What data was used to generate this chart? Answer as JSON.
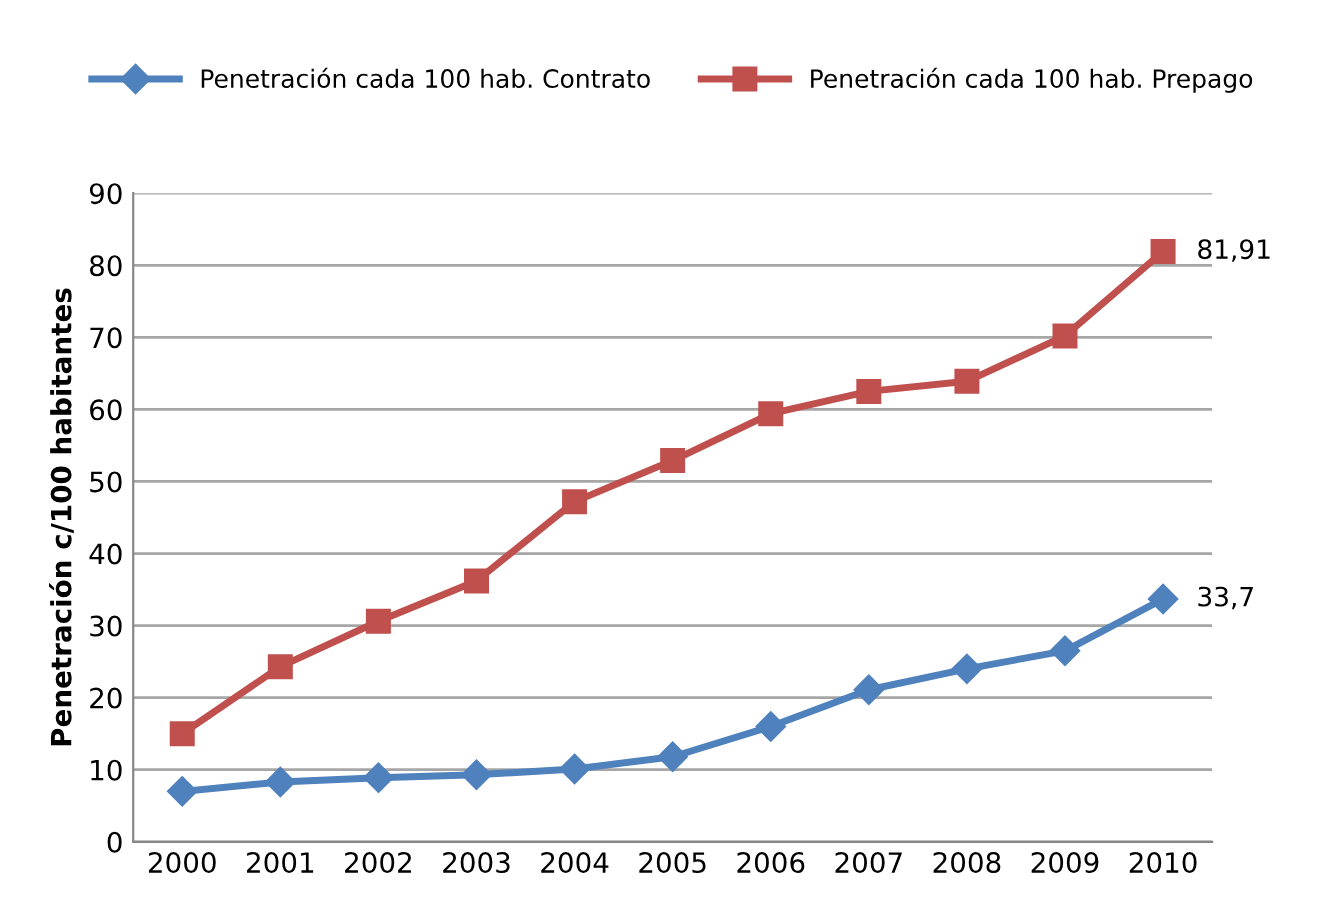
{
  "chart_data": {
    "type": "line",
    "ylabel": "Penetración c/100 habitantes",
    "categories": [
      "2000",
      "2001",
      "2002",
      "2003",
      "2004",
      "2005",
      "2006",
      "2007",
      "2008",
      "2009",
      "2010"
    ],
    "series": [
      {
        "name": "Penetración cada 100 hab. Contrato",
        "color": "#4f81bd",
        "marker": "diamond",
        "values": [
          7.0,
          8.3,
          8.9,
          9.3,
          10.1,
          11.8,
          16.0,
          21.1,
          24.0,
          26.5,
          33.7
        ],
        "value_labels": [
          null,
          null,
          null,
          null,
          null,
          null,
          null,
          null,
          null,
          null,
          "33,7"
        ]
      },
      {
        "name": "Penetración cada 100 hab. Prepago",
        "color": "#c0504d",
        "marker": "square",
        "values": [
          15.0,
          24.3,
          30.6,
          36.2,
          47.2,
          52.9,
          59.4,
          62.5,
          63.9,
          70.2,
          81.91
        ],
        "value_labels": [
          null,
          null,
          null,
          null,
          null,
          null,
          null,
          null,
          null,
          null,
          "81,91"
        ]
      }
    ],
    "ylim": [
      0,
      90
    ],
    "yticks": [
      0,
      10,
      20,
      30,
      40,
      50,
      60,
      70,
      80,
      90
    ],
    "grid": "y",
    "legend": "top",
    "line_style": "solid"
  }
}
